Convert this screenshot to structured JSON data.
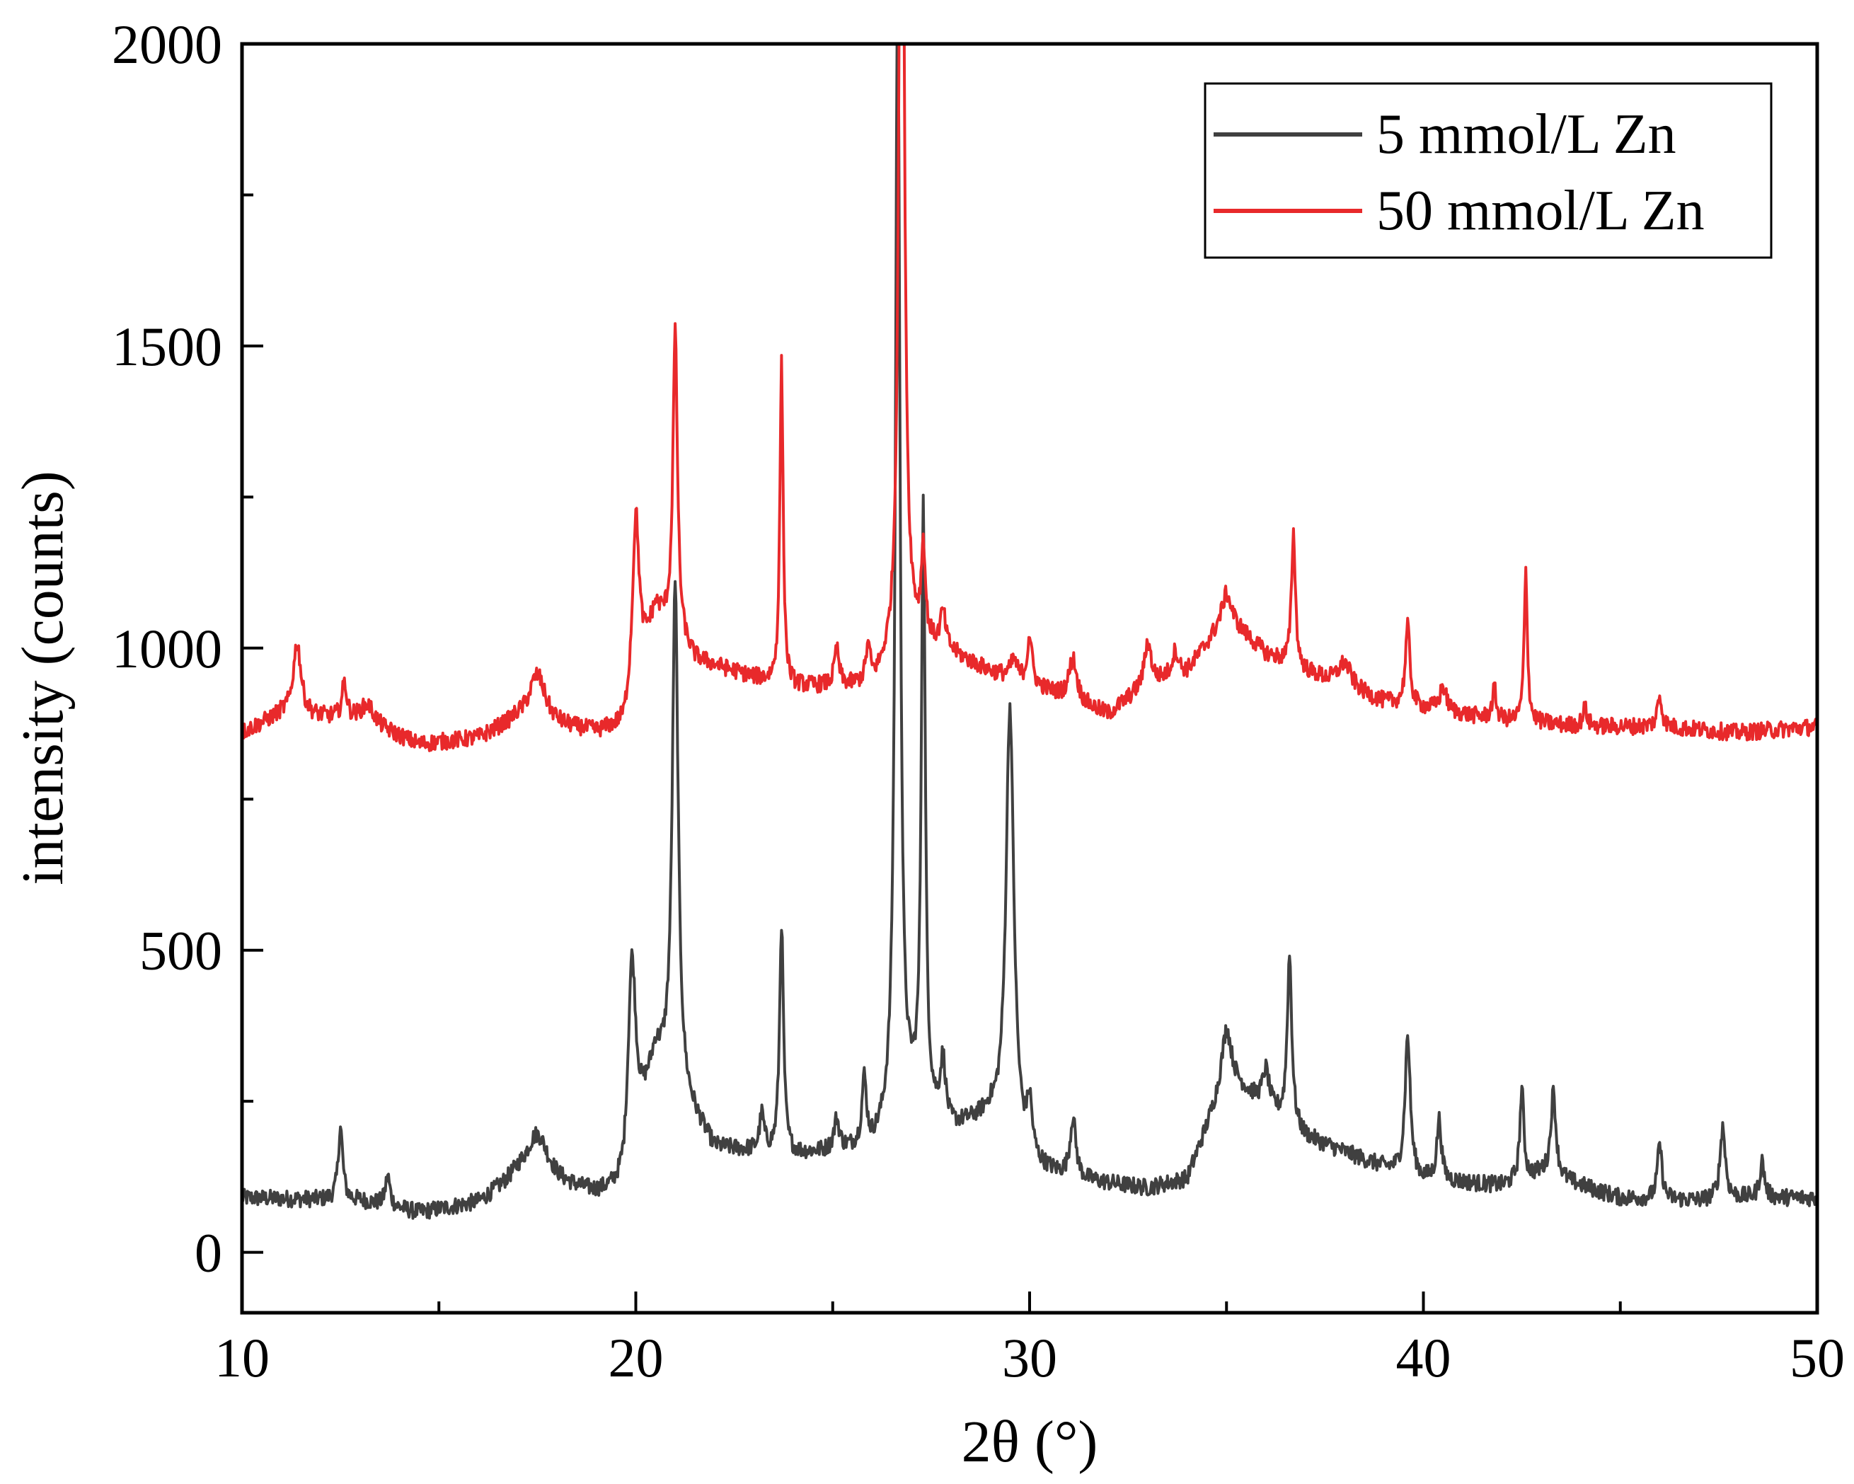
{
  "chart_data": {
    "type": "line",
    "title": "",
    "xlabel": "2θ (°)",
    "ylabel": "intensity (counts)",
    "xlim": [
      10,
      50
    ],
    "ylim": [
      -100,
      2000
    ],
    "x_ticks": [
      10,
      20,
      30,
      40,
      50
    ],
    "y_ticks": [
      0,
      500,
      1000,
      1500,
      2000
    ],
    "x_tick_labels": [
      "10",
      "20",
      "30",
      "40",
      "50"
    ],
    "y_tick_labels": [
      "0",
      "500",
      "1000",
      "1500",
      "2000"
    ],
    "legend_position": "top-right",
    "series": [
      {
        "name": "5 mmol/L Zn",
        "color": "#404040",
        "baseline": [
          [
            10,
            90
          ],
          [
            13,
            85
          ],
          [
            14.5,
            65
          ],
          [
            16,
            80
          ],
          [
            17,
            120
          ],
          [
            19,
            95
          ],
          [
            19.7,
            100
          ],
          [
            20.5,
            320
          ],
          [
            22,
            170
          ],
          [
            24,
            160
          ],
          [
            26,
            170
          ],
          [
            27,
            240
          ],
          [
            28,
            200
          ],
          [
            29,
            220
          ],
          [
            30,
            140
          ],
          [
            31,
            120
          ],
          [
            33,
            105
          ],
          [
            34,
            120
          ],
          [
            35,
            290
          ],
          [
            36,
            240
          ],
          [
            37,
            190
          ],
          [
            39,
            140
          ],
          [
            40,
            120
          ],
          [
            42,
            110
          ],
          [
            43,
            130
          ],
          [
            45,
            90
          ],
          [
            47,
            85
          ],
          [
            48,
            90
          ],
          [
            50,
            90
          ]
        ],
        "peaks": [
          [
            12.5,
            120,
            0.07
          ],
          [
            13.7,
            50,
            0.07
          ],
          [
            17.5,
            80,
            0.35
          ],
          [
            19.9,
            330,
            0.12
          ],
          [
            21.0,
            830,
            0.09
          ],
          [
            23.2,
            60,
            0.07
          ],
          [
            23.7,
            380,
            0.06
          ],
          [
            25.1,
            50,
            0.08
          ],
          [
            25.8,
            110,
            0.07
          ],
          [
            26.65,
            1900,
            0.07
          ],
          [
            27.3,
            990,
            0.06
          ],
          [
            27.8,
            100,
            0.08
          ],
          [
            29.5,
            720,
            0.12
          ],
          [
            30.0,
            90,
            0.08
          ],
          [
            31.1,
            100,
            0.09
          ],
          [
            35.0,
            80,
            0.15
          ],
          [
            36.0,
            60,
            0.1
          ],
          [
            36.6,
            280,
            0.07
          ],
          [
            39.6,
            230,
            0.08
          ],
          [
            40.4,
            100,
            0.07
          ],
          [
            42.5,
            150,
            0.06
          ],
          [
            43.3,
            140,
            0.08
          ],
          [
            46.0,
            90,
            0.07
          ],
          [
            47.6,
            120,
            0.08
          ],
          [
            48.6,
            60,
            0.07
          ]
        ],
        "noise": 14
      },
      {
        "name": "50 mmol/L Zn",
        "color": "#e8292b",
        "baseline": [
          [
            10,
            860
          ],
          [
            11,
            890
          ],
          [
            13,
            880
          ],
          [
            14.5,
            840
          ],
          [
            16,
            850
          ],
          [
            17,
            880
          ],
          [
            19,
            860
          ],
          [
            19.7,
            870
          ],
          [
            20.5,
            1060
          ],
          [
            21.5,
            980
          ],
          [
            23,
            950
          ],
          [
            24,
            935
          ],
          [
            26,
            935
          ],
          [
            27,
            1010
          ],
          [
            28,
            990
          ],
          [
            29,
            960
          ],
          [
            30,
            940
          ],
          [
            32,
            890
          ],
          [
            33,
            940
          ],
          [
            34,
            960
          ],
          [
            35,
            1050
          ],
          [
            36,
            990
          ],
          [
            37,
            960
          ],
          [
            39,
            910
          ],
          [
            40,
            900
          ],
          [
            42,
            880
          ],
          [
            44,
            870
          ],
          [
            46,
            870
          ],
          [
            48,
            860
          ],
          [
            50,
            870
          ]
        ],
        "peaks": [
          [
            11.4,
            120,
            0.12
          ],
          [
            12.6,
            60,
            0.07
          ],
          [
            13.2,
            30,
            0.2
          ],
          [
            17.5,
            80,
            0.25
          ],
          [
            20.0,
            280,
            0.1
          ],
          [
            21.0,
            500,
            0.07
          ],
          [
            23.7,
            530,
            0.05
          ],
          [
            25.1,
            60,
            0.07
          ],
          [
            25.9,
            60,
            0.07
          ],
          [
            26.75,
            1900,
            0.07
          ],
          [
            27.3,
            150,
            0.06
          ],
          [
            27.8,
            60,
            0.08
          ],
          [
            29.6,
            30,
            0.1
          ],
          [
            30.0,
            80,
            0.07
          ],
          [
            31.1,
            70,
            0.12
          ],
          [
            33.0,
            70,
            0.1
          ],
          [
            33.7,
            40,
            0.1
          ],
          [
            35.0,
            40,
            0.15
          ],
          [
            36.7,
            220,
            0.06
          ],
          [
            38.0,
            40,
            0.2
          ],
          [
            39.6,
            130,
            0.07
          ],
          [
            40.5,
            40,
            0.1
          ],
          [
            41.8,
            50,
            0.06
          ],
          [
            42.6,
            250,
            0.05
          ],
          [
            44.1,
            30,
            0.07
          ],
          [
            46.0,
            50,
            0.07
          ]
        ],
        "noise": 14
      }
    ]
  }
}
